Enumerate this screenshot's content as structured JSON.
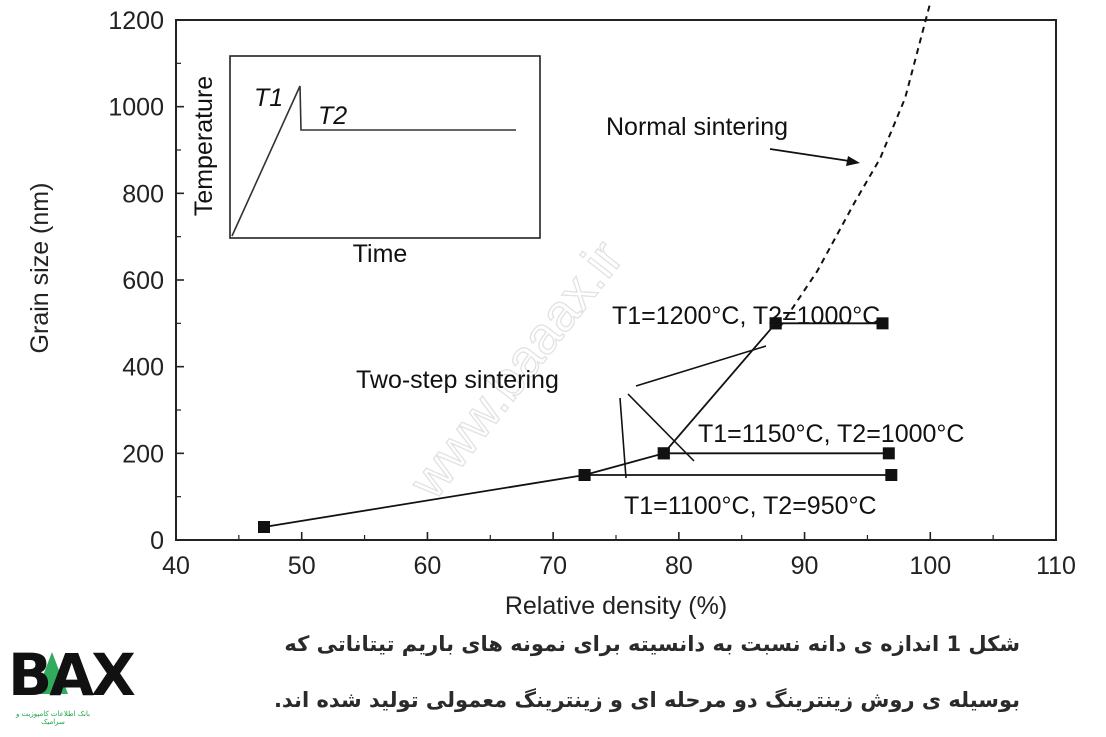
{
  "chart_data": {
    "type": "line",
    "xlabel": "Relative density (%)",
    "ylabel": "Grain size (nm)",
    "xlim": [
      40,
      110
    ],
    "ylim": [
      0,
      1200
    ],
    "xticks": [
      "40",
      "50",
      "60",
      "70",
      "80",
      "90",
      "100",
      "110"
    ],
    "yticks": [
      "0",
      "200",
      "400",
      "600",
      "800",
      "1000",
      "1200"
    ],
    "grid": false,
    "series": [
      {
        "name": "Normal sintering",
        "style": "dashed",
        "points": [
          [
            88,
            490
          ],
          [
            91,
            620
          ],
          [
            94,
            780
          ],
          [
            96,
            880
          ],
          [
            98,
            1020
          ],
          [
            100,
            1240
          ]
        ]
      },
      {
        "name": "",
        "style": "solid-markers",
        "points": [
          [
            47,
            30
          ],
          [
            72.5,
            150
          ],
          [
            78.8,
            200
          ],
          [
            87.7,
            500
          ]
        ]
      },
      {
        "name": "",
        "style": "solid-markers",
        "points": [
          [
            87.7,
            500
          ],
          [
            96.2,
            500
          ]
        ]
      },
      {
        "name": "",
        "style": "solid-markers",
        "points": [
          [
            78.8,
            200
          ],
          [
            96.7,
            200
          ]
        ]
      },
      {
        "name": "",
        "style": "solid-markers",
        "points": [
          [
            72.5,
            150
          ],
          [
            96.9,
            150
          ]
        ]
      }
    ],
    "annotations": {
      "normal_sintering": "Normal sintering",
      "two_step": "Two-step sintering",
      "label_1200": "T1=1200°C, T2=1000°C",
      "label_1150": "T1=1150°C, T2=1000°C",
      "label_1100": "T1=1100°C, T2=950°C"
    },
    "inset": {
      "xlabel": "Time",
      "ylabel": "Temperature",
      "t1_label": "T1",
      "t2_label": "T2"
    }
  },
  "watermark": "www.baaax.ir",
  "caption": {
    "line1": "شکل 1 اندازه ی دانه نسبت به دانسیته برای نمونه های باریم تیتاناتی که",
    "line2": "بوسیله ی روش زینترینگ دو مرحله ای و زینترینگ معمولی تولید شده اند."
  },
  "logo": {
    "text": "BAX",
    "subtitle": "بانک اطلاعات کامپوزیت و سرامیک",
    "accent_color": "#1aa34a"
  }
}
